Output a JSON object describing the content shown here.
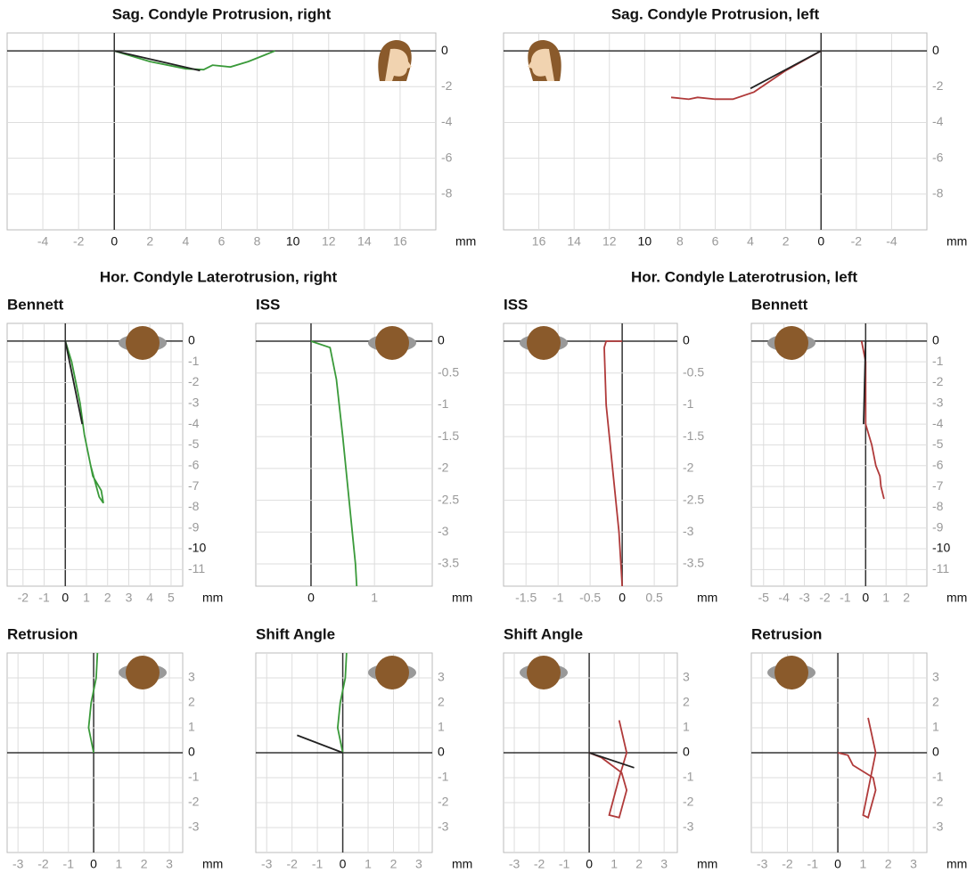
{
  "section_titles": [
    "Hor. Condyle Laterotrusion, right",
    "Hor. Condyle Laterotrusion, left"
  ],
  "chart_data": [
    {
      "type": "line",
      "title": "Sag. Condyle Protrusion, right",
      "x_label": "mm",
      "xlim": [
        -6,
        18
      ],
      "ylim": [
        -10,
        1
      ],
      "xticks": [
        -4,
        -2,
        0,
        2,
        4,
        6,
        8,
        10,
        12,
        14,
        16
      ],
      "yticks": [
        0,
        -2,
        -4,
        -6,
        -8
      ],
      "series": [
        {
          "color": "#3a9a3a",
          "x": [
            0,
            2,
            4,
            5,
            5.5,
            6.5,
            7.5,
            8.5,
            9
          ],
          "values": [
            0,
            -0.6,
            -1.0,
            -1.05,
            -0.8,
            -0.9,
            -0.6,
            -0.2,
            0
          ]
        },
        {
          "color": "#222222",
          "x": [
            0,
            4.8
          ],
          "values": [
            0,
            -1.1
          ]
        }
      ]
    },
    {
      "type": "line",
      "title": "Sag. Condyle Protrusion, left",
      "x_label": "mm",
      "xlim": [
        18,
        -6
      ],
      "ylim": [
        -10,
        1
      ],
      "xticks": [
        16,
        14,
        12,
        10,
        8,
        6,
        4,
        2,
        0,
        -2,
        -4
      ],
      "yticks": [
        0,
        -2,
        -4,
        -6,
        -8
      ],
      "series": [
        {
          "color": "#b03a3a",
          "x": [
            0,
            2,
            3.8,
            5,
            6,
            7,
            7.5,
            8.5
          ],
          "values": [
            0,
            -1.1,
            -2.3,
            -2.7,
            -2.7,
            -2.6,
            -2.7,
            -2.6
          ]
        },
        {
          "color": "#222222",
          "x": [
            0,
            4
          ],
          "values": [
            0,
            -2.1
          ]
        }
      ]
    },
    {
      "type": "line",
      "title": "Bennett",
      "x_label": "mm",
      "xlim": [
        -2.75,
        5.55
      ],
      "ylim": [
        -11.8,
        0.85
      ],
      "xticks": [
        -2,
        -1,
        0,
        1,
        2,
        3,
        4,
        5
      ],
      "yticks": [
        0,
        -1,
        -2,
        -3,
        -4,
        -5,
        -6,
        -7,
        -8,
        -9,
        -10,
        -11
      ],
      "series": [
        {
          "color": "#3a9a3a",
          "x": [
            0,
            0.3,
            0.7,
            0.9,
            1.2,
            1.6,
            1.8,
            1.7,
            1.3,
            1.1
          ],
          "values": [
            0,
            -1,
            -3,
            -4.5,
            -6,
            -7.5,
            -7.8,
            -7.2,
            -6.5,
            -5.5
          ]
        },
        {
          "color": "#222222",
          "x": [
            0,
            0.8
          ],
          "values": [
            0,
            -4
          ]
        }
      ]
    },
    {
      "type": "line",
      "title": "ISS",
      "x_label": "mm",
      "xlim": [
        -0.87,
        1.91
      ],
      "ylim": [
        -3.85,
        0.28
      ],
      "xticks": [
        0,
        1
      ],
      "yticks": [
        0,
        -0.5,
        -1,
        -1.5,
        -2,
        -2.5,
        -3,
        -3.5
      ],
      "series": [
        {
          "color": "#3a9a3a",
          "x": [
            0,
            0.3,
            0.4,
            0.5,
            0.6,
            0.7,
            0.72
          ],
          "values": [
            0,
            -0.1,
            -0.6,
            -1.5,
            -2.5,
            -3.5,
            -3.85
          ]
        }
      ]
    },
    {
      "type": "line",
      "title": "ISS",
      "x_label": "mm",
      "xlim": [
        -1.85,
        0.86
      ],
      "ylim": [
        -3.85,
        0.28
      ],
      "xticks": [
        -1.5,
        -1,
        -0.5,
        0,
        0.5
      ],
      "yticks": [
        0,
        -0.5,
        -1,
        -1.5,
        -2,
        -2.5,
        -3,
        -3.5
      ],
      "series": [
        {
          "color": "#b03a3a",
          "x": [
            0,
            -0.25,
            -0.28,
            -0.25,
            -0.15,
            -0.05,
            0
          ],
          "values": [
            0,
            0,
            -0.1,
            -1,
            -2,
            -3,
            -3.85
          ]
        }
      ]
    },
    {
      "type": "line",
      "title": "Bennett",
      "x_label": "mm",
      "xlim": [
        -5.6,
        3
      ],
      "ylim": [
        -11.8,
        0.85
      ],
      "xticks": [
        -5,
        -4,
        -3,
        -2,
        -1,
        0,
        1,
        2
      ],
      "yticks": [
        0,
        -1,
        -2,
        -3,
        -4,
        -5,
        -6,
        -7,
        -8,
        -9,
        -10,
        -11
      ],
      "series": [
        {
          "color": "#b03a3a",
          "x": [
            -0.2,
            0,
            0,
            0.3,
            0.5,
            0.7,
            0.75,
            0.9
          ],
          "values": [
            0,
            -1,
            -4,
            -5,
            -6,
            -6.5,
            -7,
            -7.6
          ]
        },
        {
          "color": "#222222",
          "x": [
            0,
            -0.1
          ],
          "values": [
            0,
            -4
          ]
        }
      ]
    },
    {
      "type": "line",
      "title": "Retrusion",
      "x_label": "mm",
      "xlim": [
        -3.43,
        3.53
      ],
      "ylim": [
        -4,
        4
      ],
      "xticks": [
        -3,
        -2,
        -1,
        0,
        1,
        2,
        3
      ],
      "yticks": [
        3,
        2,
        1,
        0,
        -1,
        -2,
        -3
      ],
      "series": [
        {
          "color": "#3a9a3a",
          "x": [
            0,
            -0.2,
            -0.1,
            0.1,
            0.15
          ],
          "values": [
            0,
            1,
            2,
            3,
            4
          ]
        }
      ]
    },
    {
      "type": "line",
      "title": "Shift Angle",
      "x_label": "mm",
      "xlim": [
        -3.43,
        3.53
      ],
      "ylim": [
        -4,
        4
      ],
      "xticks": [
        -3,
        -2,
        -1,
        0,
        1,
        2,
        3
      ],
      "yticks": [
        3,
        2,
        1,
        0,
        -1,
        -2,
        -3
      ],
      "series": [
        {
          "color": "#3a9a3a",
          "x": [
            0,
            -0.2,
            -0.1,
            0.1,
            0.15
          ],
          "values": [
            0,
            1,
            2,
            3,
            4
          ]
        },
        {
          "color": "#222222",
          "x": [
            0,
            -1.8
          ],
          "values": [
            0,
            0.7
          ]
        }
      ]
    },
    {
      "type": "line",
      "title": "Shift Angle",
      "x_label": "mm",
      "xlim": [
        -3.43,
        3.53
      ],
      "ylim": [
        -4,
        4
      ],
      "xticks": [
        -3,
        -2,
        -1,
        0,
        1,
        2,
        3
      ],
      "yticks": [
        3,
        2,
        1,
        0,
        -1,
        -2,
        -3
      ],
      "series": [
        {
          "color": "#b03a3a",
          "x": [
            0,
            0.5,
            1.3,
            1.5,
            1.2,
            0.8,
            1.2,
            1.5,
            1.2
          ],
          "values": [
            0,
            -0.2,
            -0.8,
            -1.5,
            -2.6,
            -2.5,
            -1,
            0,
            1.3
          ]
        },
        {
          "color": "#222222",
          "x": [
            0,
            1.8
          ],
          "values": [
            0,
            -0.6
          ]
        }
      ]
    },
    {
      "type": "line",
      "title": "Retrusion",
      "x_label": "mm",
      "xlim": [
        -3.43,
        3.53
      ],
      "ylim": [
        -4,
        4
      ],
      "xticks": [
        -3,
        -2,
        -1,
        0,
        1,
        2,
        3
      ],
      "yticks": [
        3,
        2,
        1,
        0,
        -1,
        -2,
        -3
      ],
      "series": [
        {
          "color": "#b03a3a",
          "x": [
            0,
            0.4,
            0.6,
            1.4,
            1.5,
            1.2,
            1,
            1.3,
            1.5,
            1.2
          ],
          "values": [
            0,
            -0.1,
            -0.5,
            -1,
            -1.5,
            -2.6,
            -2.5,
            -1,
            0,
            1.4
          ]
        }
      ]
    }
  ]
}
